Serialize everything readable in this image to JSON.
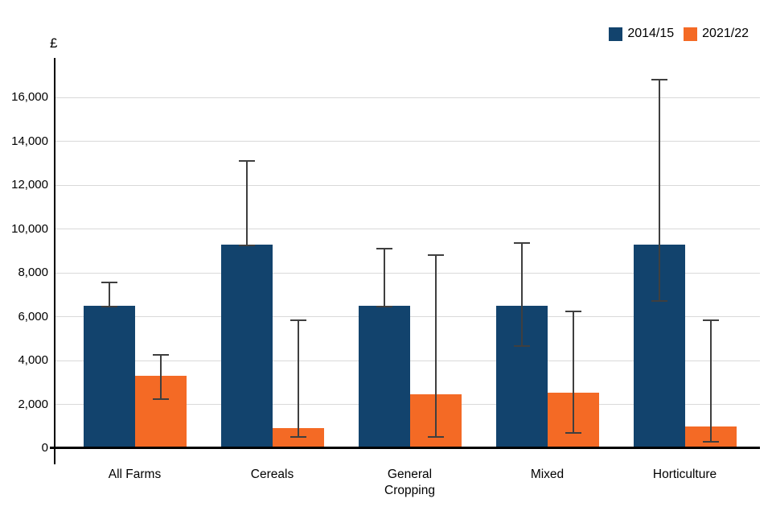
{
  "legend": {
    "items": [
      {
        "label": "2014/15",
        "color": "#12436D"
      },
      {
        "label": "2021/22",
        "color": "#F46A25"
      }
    ]
  },
  "chart_data": {
    "type": "bar",
    "title": "",
    "subtitle": "",
    "ylabel": "£",
    "xlabel": "",
    "ylim": [
      0,
      17000
    ],
    "grid": true,
    "legend_position": "top-right",
    "yticks": [
      0,
      2000,
      4000,
      6000,
      8000,
      10000,
      12000,
      14000,
      16000
    ],
    "ytick_labels": [
      "0",
      "2,000",
      "4,000",
      "6,000",
      "8,000",
      "10,000",
      "12,000",
      "14,000",
      "16,000"
    ],
    "categories": [
      "All Farms",
      "Cereals",
      "General Cropping",
      "Mixed",
      "Horticulture"
    ],
    "series": [
      {
        "name": "2014/15",
        "color": "#12436D",
        "values": [
          6500,
          9300,
          6500,
          6500,
          9300
        ],
        "error_low": [
          6450,
          9250,
          6450,
          4650,
          6700
        ],
        "error_high": [
          7550,
          13100,
          9100,
          9350,
          16800
        ]
      },
      {
        "name": "2021/22",
        "color": "#F46A25",
        "values": [
          3300,
          900,
          2450,
          2550,
          1000
        ],
        "error_low": [
          2250,
          500,
          500,
          700,
          300
        ],
        "error_high": [
          4250,
          5850,
          8800,
          6250,
          5850
        ]
      }
    ],
    "error_bar_color": "#3F3F3F",
    "gridline_color": "#D9D9D9",
    "axis_color": "#000000"
  }
}
